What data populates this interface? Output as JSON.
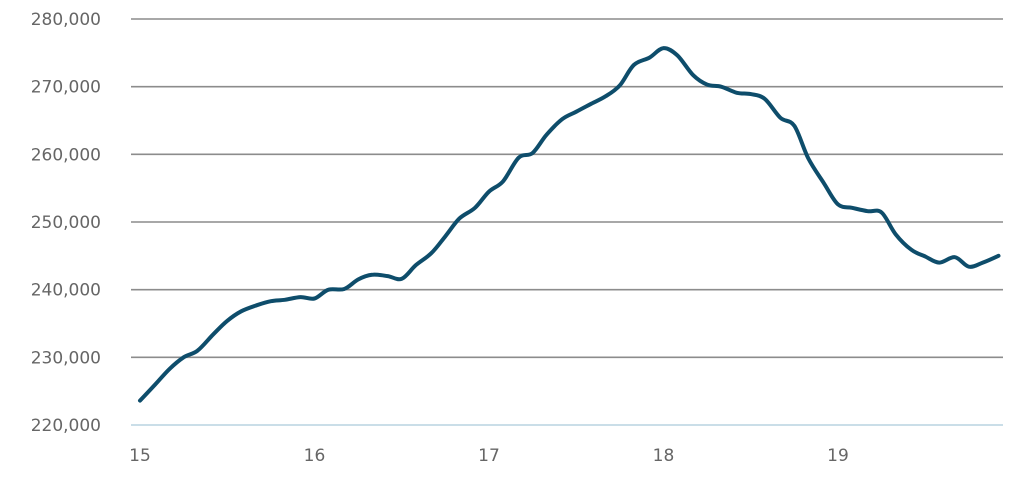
{
  "chart_data": {
    "type": "line",
    "title": "",
    "xlabel": "",
    "ylabel": "",
    "xlim": [
      15,
      20
    ],
    "ylim": [
      220000,
      280000
    ],
    "grid": true,
    "x_ticks": [
      {
        "value": 15,
        "label": "15"
      },
      {
        "value": 16,
        "label": "16"
      },
      {
        "value": 17,
        "label": "17"
      },
      {
        "value": 18,
        "label": "18"
      },
      {
        "value": 19,
        "label": "19"
      }
    ],
    "y_ticks": [
      {
        "value": 220000,
        "label": "220,000"
      },
      {
        "value": 230000,
        "label": "230,000"
      },
      {
        "value": 240000,
        "label": "240,000"
      },
      {
        "value": 250000,
        "label": "250,000"
      },
      {
        "value": 260000,
        "label": "260,000"
      },
      {
        "value": 270000,
        "label": "270,000"
      },
      {
        "value": 280000,
        "label": "280,000"
      }
    ],
    "colors": {
      "line": "#0e4d6b",
      "grid": "#8c8c8c",
      "baseline": "#b9d3e0",
      "tick_text": "#666666"
    },
    "series": [
      {
        "x": [
          15.0,
          15.08,
          15.17,
          15.25,
          15.33,
          15.42,
          15.5,
          15.58,
          15.67,
          15.75,
          15.83,
          15.92,
          16.0,
          16.08,
          16.17,
          16.25,
          16.33,
          16.42,
          16.5,
          16.58,
          16.67,
          16.75,
          16.83,
          16.92,
          17.0,
          17.08,
          17.17,
          17.25,
          17.33,
          17.42,
          17.5,
          17.58,
          17.67,
          17.75,
          17.83,
          17.92,
          18.0,
          18.08,
          18.17,
          18.25,
          18.33,
          18.42,
          18.5,
          18.58,
          18.67,
          18.75,
          18.83,
          18.92,
          19.0,
          19.08,
          19.17,
          19.25,
          19.33,
          19.42,
          19.5,
          19.58,
          19.67,
          19.75,
          19.83,
          19.92
        ],
        "y": [
          223600,
          225800,
          228300,
          230000,
          231000,
          233400,
          235400,
          236800,
          237700,
          238300,
          238500,
          238900,
          238700,
          240000,
          240100,
          241500,
          242200,
          242000,
          241600,
          243600,
          245400,
          247900,
          250500,
          252100,
          254500,
          256000,
          259500,
          260200,
          262900,
          265200,
          266300,
          267400,
          268600,
          270200,
          273200,
          274300,
          275700,
          274600,
          271700,
          270300,
          270000,
          269100,
          268900,
          268200,
          265400,
          264200,
          259400,
          255700,
          252600,
          252100,
          251600,
          251400,
          248200,
          245900,
          244900,
          244000,
          244800,
          243400,
          244000,
          245000
        ]
      }
    ]
  }
}
